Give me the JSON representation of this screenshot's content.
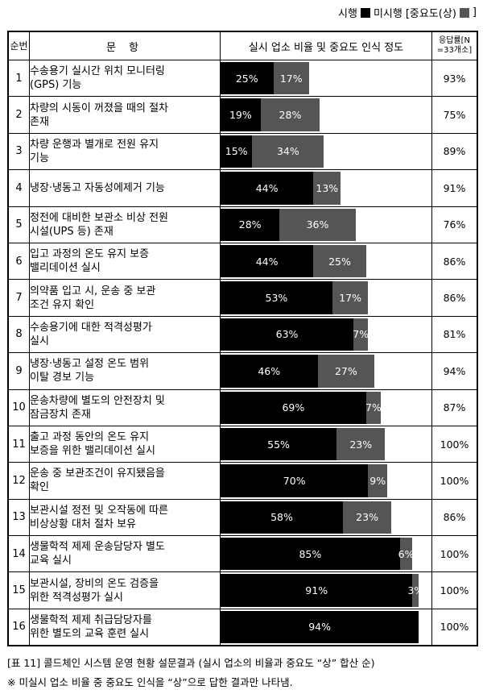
{
  "legend": {
    "label_done": "시행",
    "label_notdone": "미시행",
    "label_importance": "[중요도(상)",
    "label_end": "]"
  },
  "headers": {
    "no": "순번",
    "item": "문 항",
    "chart": "실시 업소 비율 및 중요도 인식 정도",
    "resp_line1": "응답률[N",
    "resp_line2": "=33개소]"
  },
  "chart_data": {
    "type": "bar",
    "orientation": "horizontal-stacked",
    "colors": {
      "done": "#000000",
      "notdone_importance_high": "#555555"
    },
    "categories": [
      "수송용기 실시간 위치 모니터링 (GPS) 기능",
      "차량의 시동이 꺼졌을 때의 절차 존재",
      "차량 운행과 별개로 전원 유지 기능",
      "냉장·냉동고 자동성에제거 기능",
      "정전에 대비한 보관소 비상 전원 시설(UPS 등) 존재",
      "입고 과정의 온도 유지 보증 밸리데이션 실시",
      "의약품 입고 시, 운송 중 보관 조건 유지 확인",
      "수송용기에 대한 적격성평가 실시",
      "냉장·냉동고 설정 온도 범위 이탈 경보 기능",
      "운송차량에 별도의 안전장치 및 잠금장치 존재",
      "출고 과정 동안의 온도 유지 보증을 위한 밸리데이션 실시",
      "운송 중 보관조건이 유지됐음을 확인",
      "보관시설 정전 및 오작동에 따른 비상상황 대처 절차 보유",
      "생물학적 제제 운송담당자 별도 교육 실시",
      "보관시설, 장비의 온도 검증을 위한 적격성평가 실시",
      "생물학적 제제 취급담당자를 위한 별도의 교육 훈련 실시"
    ],
    "series": [
      {
        "name": "시행",
        "values": [
          25,
          19,
          15,
          44,
          28,
          44,
          53,
          63,
          46,
          69,
          55,
          70,
          58,
          85,
          91,
          94
        ]
      },
      {
        "name": "미시행",
        "values": [
          17,
          28,
          34,
          13,
          36,
          25,
          17,
          7,
          27,
          7,
          23,
          9,
          23,
          6,
          3,
          null
        ]
      }
    ],
    "response_rate": [
      "93%",
      "75%",
      "89%",
      "91%",
      "76%",
      "86%",
      "86%",
      "81%",
      "94%",
      "87%",
      "100%",
      "100%",
      "86%",
      "100%",
      "100%",
      "100%"
    ],
    "xlim": [
      0,
      100
    ]
  },
  "rows": [
    {
      "no": "1",
      "line1": "수송용기 실시간 위치 모니터링",
      "line2": "(GPS) 기능"
    },
    {
      "no": "2",
      "line1": "차량의 시동이 꺼졌을 때의 절차",
      "line2": "존재"
    },
    {
      "no": "3",
      "line1": "차량 운행과 별개로 전원 유지",
      "line2": "기능"
    },
    {
      "no": "4",
      "line1": "냉장·냉동고 자동성에제거 기능",
      "line2": ""
    },
    {
      "no": "5",
      "line1": "정전에 대비한 보관소 비상 전원",
      "line2": "시설(UPS 등) 존재"
    },
    {
      "no": "6",
      "line1": "입고 과정의 온도 유지 보증",
      "line2": "밸리데이션 실시"
    },
    {
      "no": "7",
      "line1": "의약품 입고 시, 운송 중 보관",
      "line2": "조건 유지 확인"
    },
    {
      "no": "8",
      "line1": "수송용기에 대한 적격성평가",
      "line2": "실시"
    },
    {
      "no": "9",
      "line1": "냉장·냉동고 설정 온도 범위",
      "line2": "이탈 경보 기능"
    },
    {
      "no": "10",
      "line1": "운송차량에 별도의 안전장치 및",
      "line2": "잠금장치 존재"
    },
    {
      "no": "11",
      "line1": "출고 과정 동안의 온도 유지",
      "line2": "보증을 위한 밸리데이션 실시"
    },
    {
      "no": "12",
      "line1": "운송 중 보관조건이 유지됐음을",
      "line2": "확인"
    },
    {
      "no": "13",
      "line1": "보관시설 정전 및 오작동에 따른",
      "line2": "비상상황 대처 절차 보유"
    },
    {
      "no": "14",
      "line1": "생물학적 제제 운송담당자 별도",
      "line2": "교육 실시"
    },
    {
      "no": "15",
      "line1": "보관시설, 장비의 온도 검증을",
      "line2": "위한 적격성평가 실시"
    },
    {
      "no": "16",
      "line1": "생물학적 제제 취급담당자를",
      "line2": "위한 별도의 교육 훈련 실시"
    }
  ],
  "captions": {
    "c1": "[표 11] 콜드체인 시스템 운영 현황 설문결과 (실시 업소의 비율과 중요도 “상” 합산 순)",
    "c2": "※ 미실시 업소 비율 중 중요도 인식을 “상”으로 답한 결과만 나타냄."
  }
}
